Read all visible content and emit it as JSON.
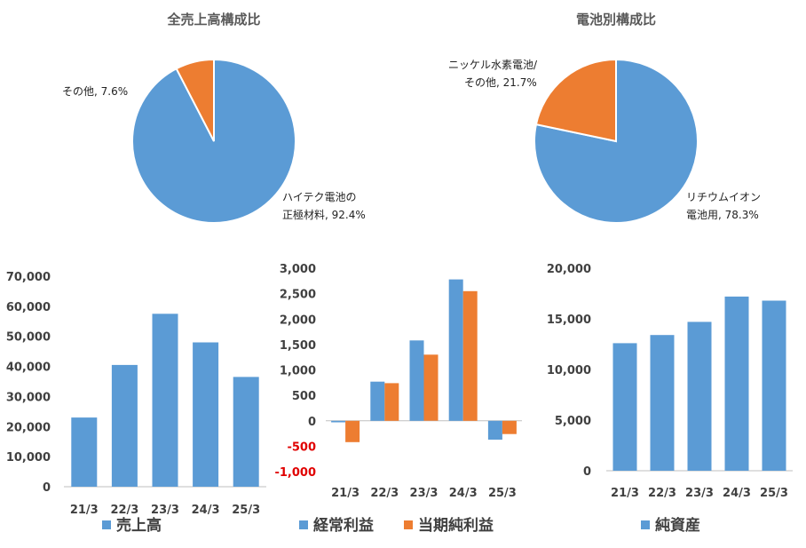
{
  "colors": {
    "blue": "#5b9bd5",
    "orange": "#ed7d31",
    "negative_tick": "#e00000",
    "axis": "#bfbfbf"
  },
  "chart_data": [
    {
      "type": "pie",
      "title": "全売上高構成比",
      "slices": [
        {
          "label": "ハイテク電池の",
          "label2": "正極材料, 92.4%",
          "value": 92.4,
          "color": "#5b9bd5"
        },
        {
          "label": "その他, 7.6%",
          "label2": "",
          "value": 7.6,
          "color": "#ed7d31"
        }
      ]
    },
    {
      "type": "pie",
      "title": "電池別構成比",
      "slices": [
        {
          "label": "リチウムイオン",
          "label2": "電池用, 78.3%",
          "value": 78.3,
          "color": "#5b9bd5"
        },
        {
          "label": "ニッケル水素電池/",
          "label2": "その他, 21.7%",
          "value": 21.7,
          "color": "#ed7d31"
        }
      ]
    },
    {
      "type": "bar",
      "categories": [
        "21/3",
        "22/3",
        "23/3",
        "24/3",
        "25/3"
      ],
      "series": [
        {
          "name": "売上高",
          "values": [
            23000,
            40500,
            57500,
            48000,
            36500
          ],
          "color": "#5b9bd5"
        }
      ],
      "ylim": [
        0,
        70000
      ],
      "yticks": [
        "0",
        "10,000",
        "20,000",
        "30,000",
        "40,000",
        "50,000",
        "60,000",
        "70,000"
      ],
      "legend": "bottom"
    },
    {
      "type": "bar",
      "categories": [
        "21/3",
        "22/3",
        "23/3",
        "24/3",
        "25/3"
      ],
      "series": [
        {
          "name": "経常利益",
          "values": [
            -30,
            770,
            1580,
            2780,
            -370
          ],
          "color": "#5b9bd5"
        },
        {
          "name": "当期純利益",
          "values": [
            -420,
            740,
            1300,
            2550,
            -260
          ],
          "color": "#ed7d31"
        }
      ],
      "ylim": [
        -1000,
        3000
      ],
      "yticks": [
        "-1,000",
        "-500",
        "0",
        "500",
        "1,000",
        "1,500",
        "2,000",
        "2,500",
        "3,000"
      ],
      "legend": "bottom"
    },
    {
      "type": "bar",
      "categories": [
        "21/3",
        "22/3",
        "23/3",
        "24/3",
        "25/3"
      ],
      "series": [
        {
          "name": "純資産",
          "values": [
            12600,
            13400,
            14700,
            17200,
            16800
          ],
          "color": "#5b9bd5"
        }
      ],
      "ylim": [
        0,
        20000
      ],
      "yticks": [
        "0",
        "5,000",
        "10,000",
        "15,000",
        "20,000"
      ],
      "legend": "bottom"
    }
  ]
}
